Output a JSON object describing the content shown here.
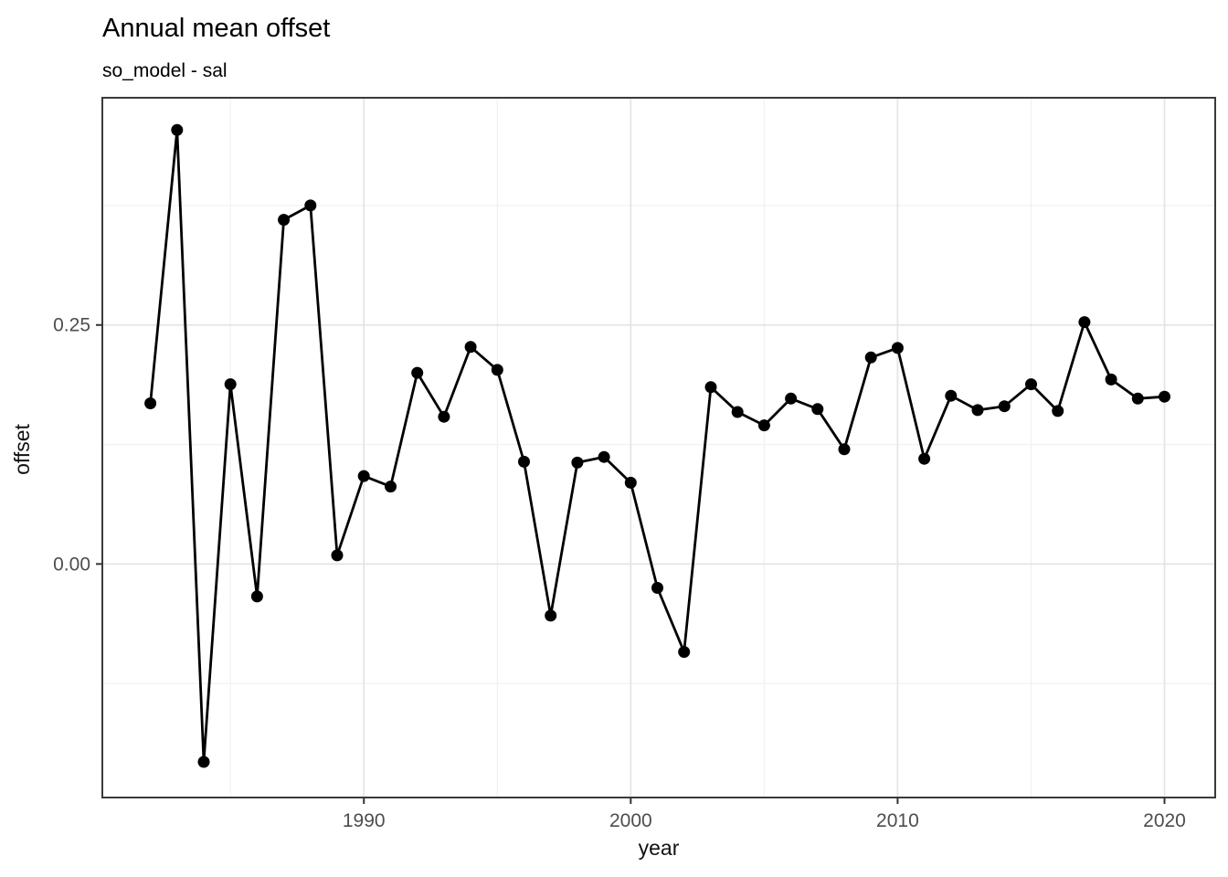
{
  "chart_data": {
    "type": "line",
    "title": "Annual mean offset",
    "subtitle": "so_model - sal",
    "xlabel": "year",
    "ylabel": "offset",
    "series": [
      {
        "name": "so_model - sal",
        "x": [
          1982,
          1983,
          1984,
          1985,
          1986,
          1987,
          1988,
          1989,
          1990,
          1991,
          1992,
          1993,
          1994,
          1995,
          1996,
          1997,
          1998,
          1999,
          2000,
          2001,
          2002,
          2003,
          2004,
          2005,
          2006,
          2007,
          2008,
          2009,
          2010,
          2011,
          2012,
          2013,
          2014,
          2015,
          2016,
          2017,
          2018,
          2019,
          2020
        ],
        "y": [
          0.168,
          0.454,
          -0.207,
          0.188,
          -0.034,
          0.36,
          0.375,
          0.009,
          0.092,
          0.081,
          0.2,
          0.154,
          0.227,
          0.203,
          0.107,
          -0.054,
          0.106,
          0.112,
          0.085,
          -0.025,
          -0.092,
          0.185,
          0.159,
          0.145,
          0.173,
          0.162,
          0.12,
          0.216,
          0.226,
          0.11,
          0.176,
          0.161,
          0.165,
          0.188,
          0.16,
          0.253,
          0.193,
          0.173,
          0.175
        ]
      }
    ],
    "xlim": [
      1980.2,
      2021.9
    ],
    "ylim": [
      -0.2443,
      0.4877
    ],
    "x_major_ticks": [
      1990,
      2000,
      2010,
      2020
    ],
    "x_major_tick_labels": [
      "1990",
      "2000",
      "2010",
      "2020"
    ],
    "x_minor_ticks": [
      1985,
      1995,
      2005,
      2015
    ],
    "y_major_ticks": [
      0.0,
      0.25
    ],
    "y_major_tick_labels": [
      "0.00",
      "0.25"
    ],
    "y_minor_ticks": [
      -0.125,
      0.125,
      0.375
    ],
    "grid": "on",
    "legend": "none",
    "colors": {
      "line": "#000000",
      "point": "#000000",
      "grid_major": "#e4e4e4",
      "grid_minor": "#f0f0f0",
      "panel_border": "#3a3a3a",
      "tick_mark": "#333333",
      "tick_label": "#4d4d4d",
      "background": "#ffffff"
    }
  }
}
